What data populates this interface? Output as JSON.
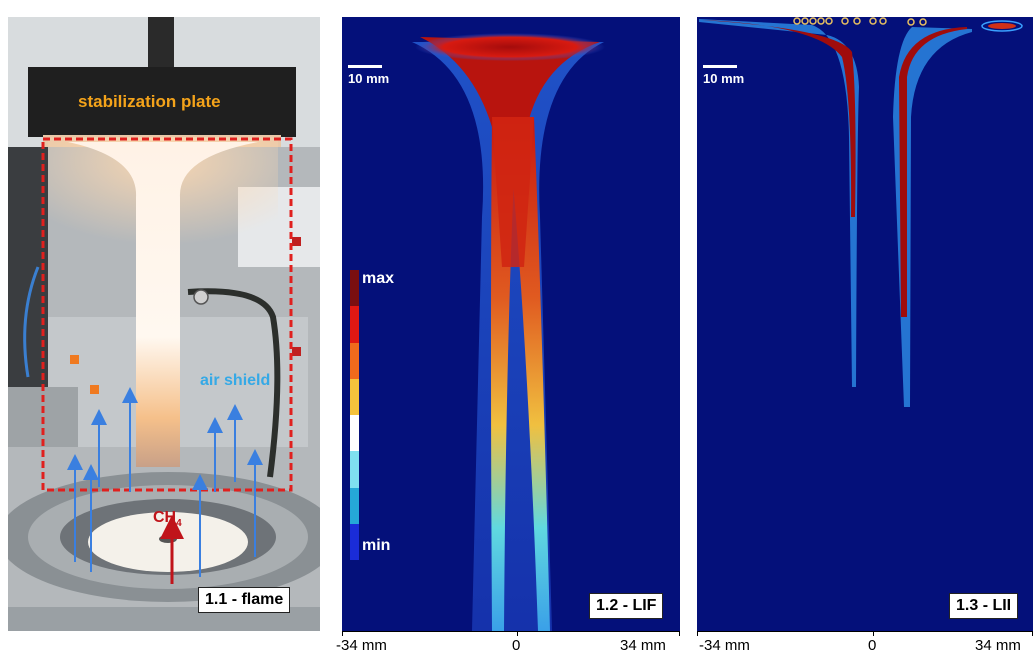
{
  "panel_flame": {
    "stabilization_label": "stabilization plate",
    "air_shield_label": "air shield",
    "ch4_main": "CH",
    "ch4_sub": "4",
    "tag": "1.1 - flame",
    "colors": {
      "stab": "#f4a31a",
      "air": "#35a9e6",
      "ch4": "#c0141a",
      "frame": "#e0201e"
    }
  },
  "panel_lif": {
    "scale_label": "10 mm",
    "cmap_max": "max",
    "cmap_min": "min",
    "cmap_colors": [
      "#7a0f10",
      "#e01812",
      "#f06a1c",
      "#f4c23c",
      "#ffffff",
      "#7fe0f0",
      "#25a8d8",
      "#1a2cd8"
    ],
    "tag": "1.2 - LIF"
  },
  "panel_lii": {
    "scale_label": "10 mm",
    "tag": "1.3 - LII"
  },
  "axis_lif": {
    "ticks": [
      "-34 mm",
      "0",
      "34 mm"
    ]
  },
  "axis_lii": {
    "ticks": [
      "-34 mm",
      "0",
      "34 mm"
    ]
  }
}
